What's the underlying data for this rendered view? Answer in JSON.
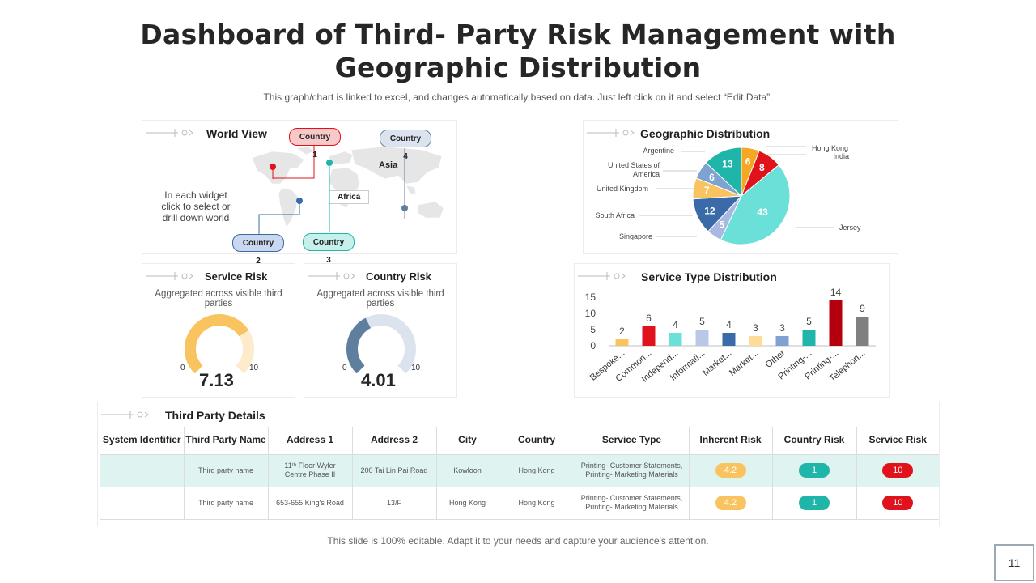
{
  "page": {
    "title_line1": "Dashboard of Third- Party Risk Management with",
    "title_line2": "Geographic Distribution",
    "subtitle": "This graph/chart is linked to excel, and changes automatically based on data. Just left click on it and select “Edit Data”.",
    "footer": "This slide is 100% editable. Adapt it to your needs and capture your audience's attention.",
    "page_number": "11"
  },
  "world_view": {
    "title": "World View",
    "hint_lines": [
      "In each widget",
      "click to select or",
      "drill down world"
    ],
    "callouts": {
      "country1": "Country 1",
      "country2": "Country 2",
      "country3": "Country 3",
      "country4": "Country 4"
    },
    "regions": {
      "asia": "Asia",
      "africa": "Africa"
    },
    "colors": {
      "country1": "#f8c9c9",
      "country2": "#c9d8ef",
      "country3": "#c6f0ec",
      "country4": "#dbe3ee"
    }
  },
  "service_risk": {
    "title": "Service Risk",
    "subtitle": "Aggregated across visible third parties",
    "value": 7.13,
    "value_label": "7.13",
    "min_label": "0",
    "max_label": "10",
    "min": 0,
    "max": 10,
    "fill_color": "#f9c460",
    "track_color": "#fdebcc"
  },
  "country_risk": {
    "title": "Country  Risk",
    "subtitle": "Aggregated across visible third parties",
    "value": 4.01,
    "value_label": "4.01",
    "min_label": "0",
    "max_label": "10",
    "min": 0,
    "max": 10,
    "fill_color": "#5f7f9f",
    "track_color": "#dbe3ee"
  },
  "details": {
    "title": "Third Party Details",
    "headers": [
      "System Identifier",
      "Third Party Name",
      "Address 1",
      "Address 2",
      "City",
      "Country",
      "Service Type",
      "Inherent Risk",
      "Country Risk",
      "Service Risk"
    ],
    "rows": [
      {
        "system_id": "",
        "name": "Third party name",
        "address1": "11ᵗʰ Floor Wyler Centre Phase II",
        "address2": "200 Tai Lin Pai Road",
        "city": "Kowloon",
        "country": "Hong Kong",
        "service_type": "Printing- Customer Statements, Printing- Marketing Materials",
        "inherent_risk": "4.2",
        "country_risk": "1",
        "service_risk": "10"
      },
      {
        "system_id": "",
        "name": "Third party name",
        "address1": "653-655 King's Road",
        "address2": "13/F",
        "city": "Hong Kong",
        "country": "Hong Kong",
        "service_type": "Printing- Customer Statements, Printing- Marketing Materials",
        "inherent_risk": "4.2",
        "country_risk": "1",
        "service_risk": "10"
      }
    ],
    "pill_colors": {
      "inherent": "#f9c460",
      "country": "#1fb5a8",
      "service": "#e0121b"
    }
  },
  "chart_data": [
    {
      "type": "pie",
      "title": "Geographic Distribution",
      "slices": [
        {
          "name": "Hong Kong",
          "value": 6,
          "color": "#f5a623"
        },
        {
          "name": "India",
          "value": 8,
          "color": "#e0121b"
        },
        {
          "name": "Jersey",
          "value": 43,
          "color": "#6be0d8"
        },
        {
          "name": "Singapore",
          "value": 5,
          "color": "#a9b8e0"
        },
        {
          "name": "South Africa",
          "value": 12,
          "color": "#3b6aa8"
        },
        {
          "name": "United Kingdom",
          "value": 7,
          "color": "#f9c460"
        },
        {
          "name": "United States of America",
          "value": 6,
          "color": "#7fa3d1"
        },
        {
          "name": "Argentine",
          "value": 13,
          "color": "#1fb5a8"
        }
      ]
    },
    {
      "type": "bar",
      "title": "Service Type Distribution",
      "categories": [
        "Bespoke...",
        "Common...",
        "Independ...",
        "Informati...",
        "Market...",
        "Market...",
        "Other",
        "Printing-...",
        "Printing-...",
        "Telephon..."
      ],
      "values": [
        2,
        6,
        4,
        5,
        4,
        3,
        3,
        5,
        14,
        9
      ],
      "value_labels": [
        "2",
        "6",
        "4",
        "5",
        "4",
        "3",
        "3",
        "5",
        "14",
        "9"
      ],
      "colors": [
        "#f9c460",
        "#e0121b",
        "#6be0d8",
        "#b8c8e6",
        "#3b6aa8",
        "#fddc9a",
        "#7fa3d1",
        "#1fb5a8",
        "#b3000c",
        "#808080"
      ],
      "yticks": [
        "0",
        "5",
        "10",
        "15"
      ],
      "ylim": [
        0,
        15
      ]
    }
  ]
}
